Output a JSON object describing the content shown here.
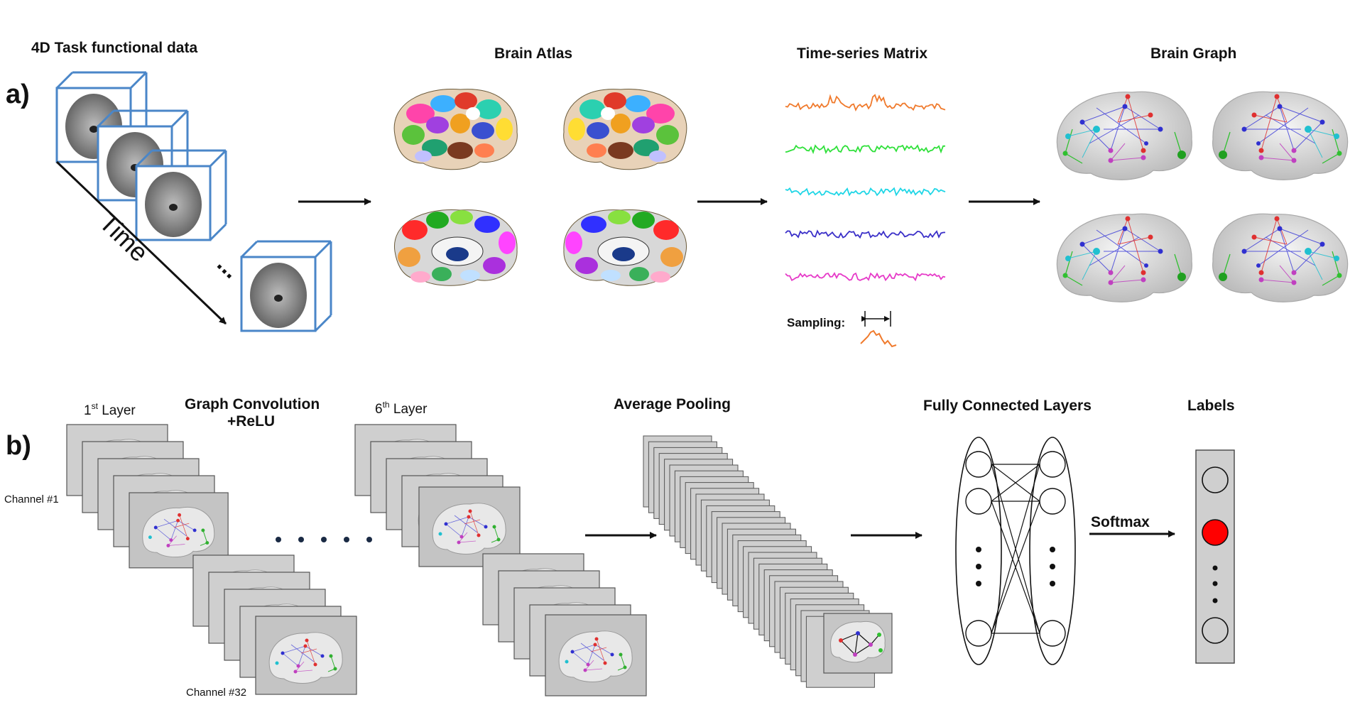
{
  "panel_a": {
    "label": "a)",
    "title_4d": "4D Task functional data",
    "time_label": "Time",
    "ellipsis": "...",
    "title_atlas": "Brain Atlas",
    "title_timeseries": "Time-series Matrix",
    "sampling_label": "Sampling:",
    "title_graph": "Brain Graph",
    "series_colors": [
      "#f07a2c",
      "#2fe03a",
      "#1fd6e6",
      "#3a2fc8",
      "#e639c8"
    ]
  },
  "panel_b": {
    "label": "b)",
    "layer1_num": "1",
    "layer1_sup": "st",
    "layer1_text": " Layer",
    "gc_title_line1": "Graph Convolution",
    "gc_title_line2": "+ReLU",
    "layer6_num": "6",
    "layer6_sup": "th",
    "layer6_text": " Layer",
    "channel_first": "Channel #1",
    "channel_last": "Channel #32",
    "avg_pool_title": "Average Pooling",
    "fc_title": "Fully Connected Layers",
    "labels_title": "Labels",
    "softmax_label": "Softmax",
    "label_active_color": "#ff0000"
  }
}
